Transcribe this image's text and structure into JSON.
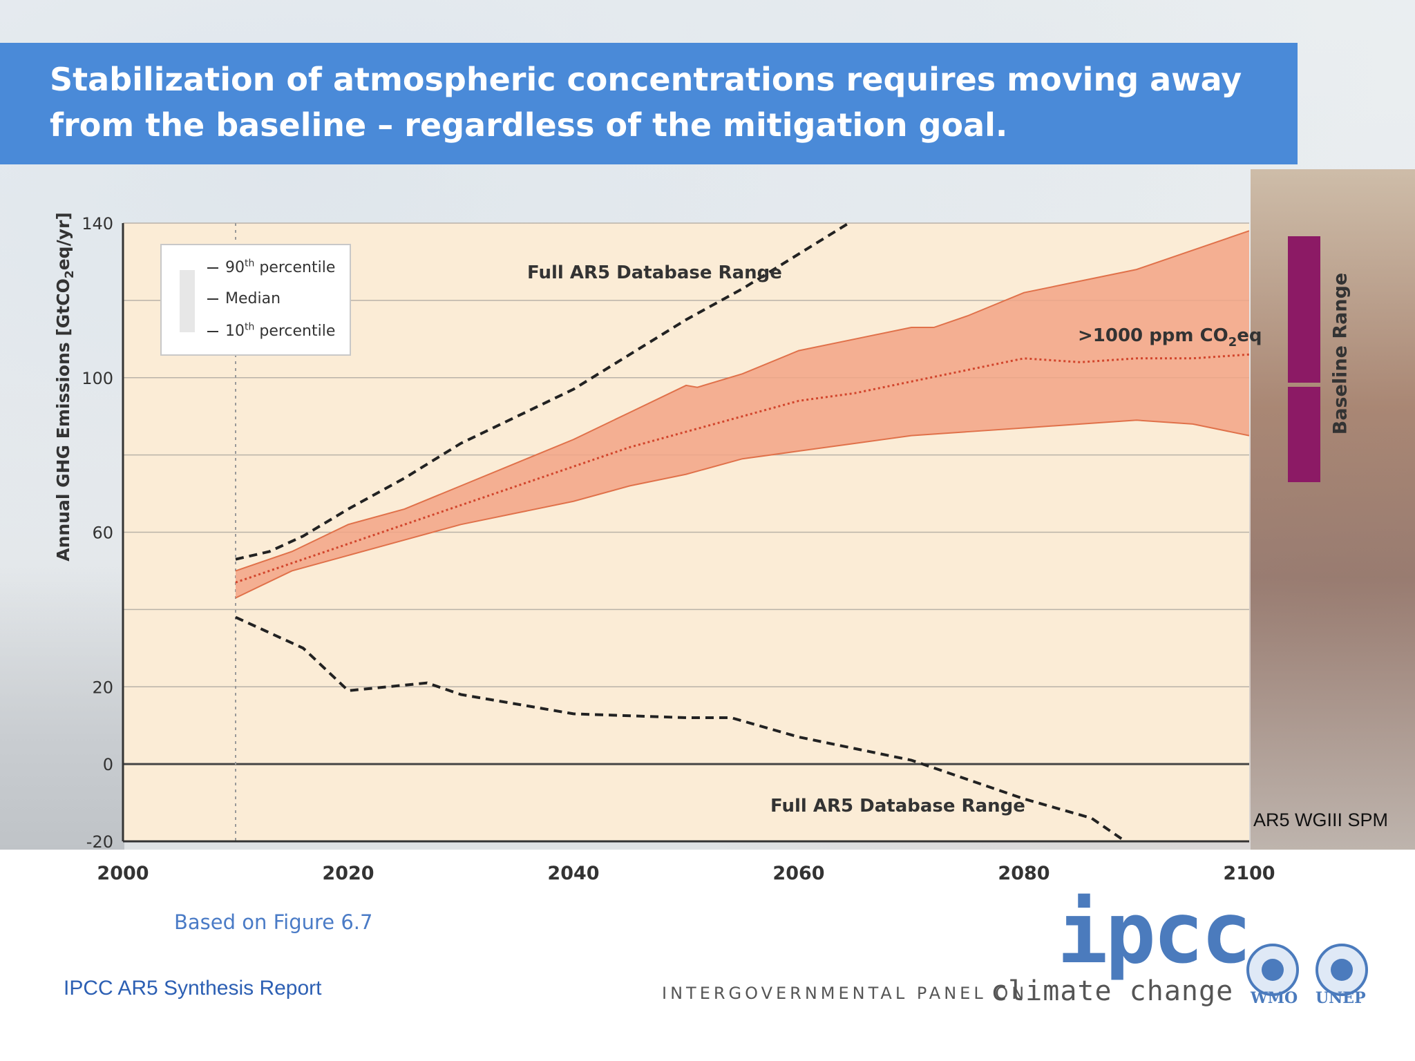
{
  "slide": {
    "title": "Stabilization of atmospheric concentrations requires moving away from the baseline – regardless of the mitigation goal.",
    "figure_note": "Based on Figure 6.7",
    "report_note": "IPCC AR5 Synthesis Report",
    "source_tag": "AR5 WGIII SPM"
  },
  "logos": {
    "ipcc": "ipcc",
    "ipcc_subtitle": "INTERGOVERNMENTAL PANEL ON",
    "ipcc_subtitle_cc": "climate change",
    "wmo": "WMO",
    "unep": "UNEP",
    "color": "#4b7bbd"
  },
  "colors": {
    "title_bar": "#4a8ad8",
    "band_fill": "#f2a586",
    "band_edge": "#e0714a",
    "median": "#d2452c",
    "plot_bg": "#fbecd6",
    "baseline_bar": "#8c1a65"
  },
  "chart_data": {
    "type": "area",
    "ylabel": "Annual GHG Emissions [GtCO2eq/yr]",
    "xlim": [
      2000,
      2100
    ],
    "ylim": [
      -20,
      140
    ],
    "x_ticks": [
      2000,
      2020,
      2040,
      2060,
      2080,
      2100
    ],
    "y_ticks": [
      -20,
      0,
      20,
      60,
      100,
      140
    ],
    "gridlines_y": [
      0,
      20,
      40,
      60,
      80,
      100,
      120,
      140
    ],
    "grid": true,
    "legend": {
      "placement": "top-left",
      "entries": [
        "90th percentile",
        "Median",
        "10th percentile"
      ]
    },
    "band_label": ">1000 ppm CO2eq",
    "upper_range_label": "Full AR5 Database Range",
    "lower_range_label": "Full AR5 Database Range",
    "baseline_range_label": "Baseline Range",
    "baseline_range": [
      67,
      137
    ],
    "series": [
      {
        "name": "90th percentile",
        "x": [
          2010,
          2015,
          2020,
          2025,
          2030,
          2035,
          2040,
          2045,
          2050,
          2051,
          2055,
          2060,
          2065,
          2070,
          2072,
          2075,
          2080,
          2085,
          2090,
          2095,
          2100
        ],
        "values": [
          50,
          55,
          62,
          66,
          72,
          78,
          84,
          91,
          98,
          97.5,
          101,
          107,
          110,
          113,
          113,
          116,
          122,
          125,
          128,
          133,
          138
        ]
      },
      {
        "name": "Median",
        "x": [
          2010,
          2015,
          2020,
          2025,
          2030,
          2035,
          2040,
          2045,
          2050,
          2055,
          2060,
          2065,
          2070,
          2075,
          2080,
          2085,
          2090,
          2095,
          2100
        ],
        "values": [
          47,
          52,
          57,
          62,
          67,
          72,
          77,
          82,
          86,
          90,
          94,
          96,
          99,
          102,
          105,
          104,
          105,
          105,
          106
        ]
      },
      {
        "name": "10th percentile",
        "x": [
          2010,
          2015,
          2020,
          2025,
          2030,
          2035,
          2040,
          2045,
          2050,
          2055,
          2060,
          2065,
          2070,
          2075,
          2080,
          2085,
          2090,
          2095,
          2100
        ],
        "values": [
          43,
          50,
          54,
          58,
          62,
          65,
          68,
          72,
          75,
          79,
          81,
          83,
          85,
          86,
          87,
          88,
          89,
          88,
          85
        ]
      },
      {
        "name": "Full AR5 Database Range",
        "x": [
          2010,
          2013,
          2016,
          2020,
          2025,
          2030,
          2035,
          2040,
          2045,
          2050,
          2055,
          2060,
          2065
        ],
        "values": [
          53,
          55,
          59,
          66,
          74,
          83,
          90,
          97,
          106,
          115,
          123,
          132,
          141
        ]
      },
      {
        "name": "Full AR5 Database Range",
        "x": [
          2010,
          2016,
          2020,
          2027,
          2030,
          2040,
          2050,
          2054,
          2060,
          2065,
          2070,
          2075,
          2080,
          2086,
          2089
        ],
        "values": [
          38,
          30,
          19,
          21,
          18,
          13,
          12,
          12,
          7,
          4,
          1,
          -4,
          -9,
          -14,
          -20
        ]
      }
    ]
  }
}
